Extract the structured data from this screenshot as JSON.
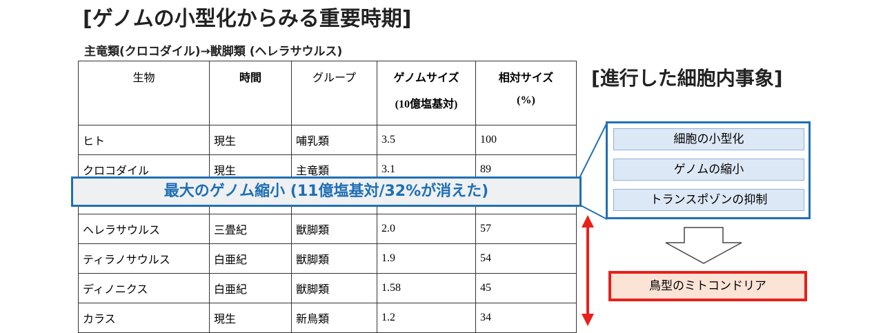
{
  "title": "[ゲノムの小型化からみる重要時期]",
  "subtitle": "主竜類(クロコダイル)→獣脚類 (ヘレラサウルス)",
  "table": {
    "header": [
      {
        "label": "生物"
      },
      {
        "label": "時間"
      },
      {
        "label": "グループ"
      },
      {
        "label": "ゲノムサイズ",
        "sub": "(10億塩基対)"
      },
      {
        "label": "相対サイズ",
        "sub": "(%)"
      }
    ],
    "rows": [
      [
        "ヒト",
        "現生",
        "哺乳類",
        "3.5",
        "100"
      ],
      [
        "クロコダイル",
        "現生",
        "主竜類",
        "3.1",
        "89"
      ],
      [
        "ヘレラサウルス",
        "三畳紀",
        "獣脚類",
        "2.0",
        "57"
      ],
      [
        "ティラノサウルス",
        "白亜紀",
        "獣脚類",
        "1.9",
        "54"
      ],
      [
        "ディノニクス",
        "白亜紀",
        "獣脚類",
        "1.58",
        "45"
      ],
      [
        "カラス",
        "現生",
        "新鳥類",
        "1.2",
        "34"
      ]
    ]
  },
  "banner": "最大のゲノム縮小 (11億塩基対/32%が消えた)",
  "events": {
    "title": "[進行した細胞内事象]",
    "items": [
      "細胞の小型化",
      "ゲノムの縮小",
      "トランスポゾンの抑制"
    ],
    "result": "鳥型のミトコンドリア"
  }
}
